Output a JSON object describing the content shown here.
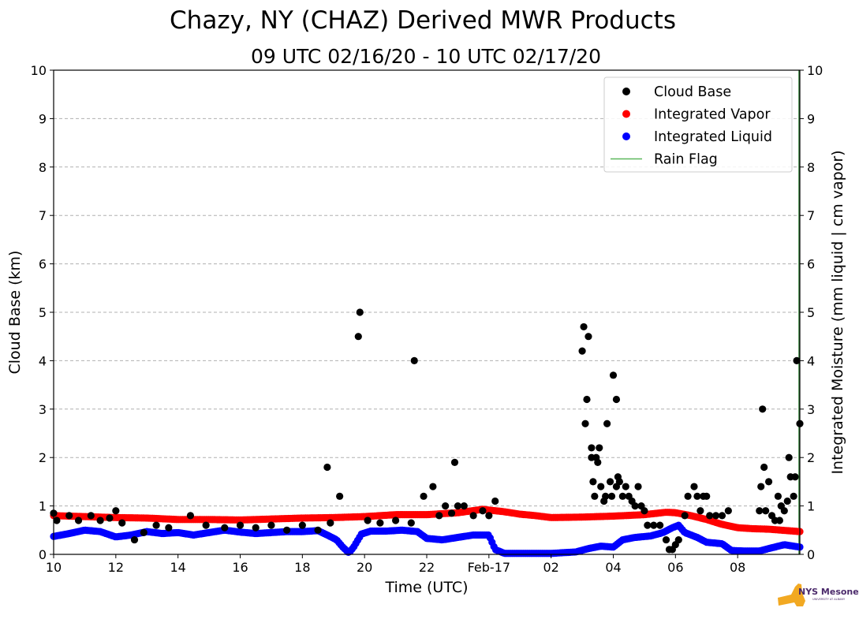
{
  "chart_data": {
    "type": "scatter",
    "title": "Chazy, NY (CHAZ) Derived MWR Products",
    "subtitle": "09 UTC 02/16/20 - 10 UTC 02/17/20",
    "xlabel": "Time (UTC)",
    "ylabel": "Cloud Base (km)",
    "ylabel_right": "Integrated Moisture (mm liquid | cm vapor)",
    "xlim_hours": [
      10,
      34
    ],
    "ylim": [
      0,
      10
    ],
    "grid": "horizontal-dashed",
    "legend_position": "top-right",
    "x_ticks": [
      {
        "h": 10,
        "label": "10"
      },
      {
        "h": 12,
        "label": "12"
      },
      {
        "h": 14,
        "label": "14"
      },
      {
        "h": 16,
        "label": "16"
      },
      {
        "h": 18,
        "label": "18"
      },
      {
        "h": 20,
        "label": "20"
      },
      {
        "h": 22,
        "label": "22"
      },
      {
        "h": 24,
        "label": "Feb-17"
      },
      {
        "h": 26,
        "label": "02"
      },
      {
        "h": 28,
        "label": "04"
      },
      {
        "h": 30,
        "label": "06"
      },
      {
        "h": 32,
        "label": "08"
      }
    ],
    "y_ticks": [
      "0",
      "1",
      "2",
      "3",
      "4",
      "5",
      "6",
      "7",
      "8",
      "9",
      "10"
    ],
    "legend": [
      {
        "label": "Cloud Base",
        "kind": "dot",
        "color": "#000000"
      },
      {
        "label": "Integrated Vapor",
        "kind": "dot",
        "color": "#ff0000"
      },
      {
        "label": "Integrated Liquid",
        "kind": "dot",
        "color": "#0000ff"
      },
      {
        "label": "Rain Flag",
        "kind": "line",
        "color": "#5cb85c"
      }
    ],
    "series": [
      {
        "name": "Integrated Vapor",
        "color": "#ff0000",
        "points": [
          [
            10,
            0.8
          ],
          [
            11,
            0.78
          ],
          [
            12,
            0.76
          ],
          [
            13,
            0.75
          ],
          [
            14,
            0.72
          ],
          [
            15,
            0.72
          ],
          [
            16,
            0.71
          ],
          [
            17,
            0.73
          ],
          [
            18,
            0.75
          ],
          [
            19,
            0.76
          ],
          [
            20,
            0.78
          ],
          [
            21,
            0.82
          ],
          [
            22,
            0.82
          ],
          [
            23,
            0.86
          ],
          [
            23.8,
            0.93
          ],
          [
            24.5,
            0.88
          ],
          [
            25,
            0.83
          ],
          [
            25.5,
            0.8
          ],
          [
            26,
            0.76
          ],
          [
            27,
            0.77
          ],
          [
            28,
            0.79
          ],
          [
            29,
            0.82
          ],
          [
            29.7,
            0.87
          ],
          [
            30,
            0.86
          ],
          [
            30.5,
            0.8
          ],
          [
            31,
            0.72
          ],
          [
            31.5,
            0.62
          ],
          [
            32,
            0.55
          ],
          [
            32.5,
            0.53
          ],
          [
            33,
            0.52
          ],
          [
            34,
            0.47
          ]
        ]
      },
      {
        "name": "Integrated Liquid",
        "color": "#0000ff",
        "points": [
          [
            10,
            0.37
          ],
          [
            10.5,
            0.43
          ],
          [
            11,
            0.5
          ],
          [
            11.5,
            0.47
          ],
          [
            12,
            0.36
          ],
          [
            12.5,
            0.4
          ],
          [
            13,
            0.47
          ],
          [
            13.5,
            0.43
          ],
          [
            14,
            0.45
          ],
          [
            14.5,
            0.4
          ],
          [
            15,
            0.45
          ],
          [
            15.5,
            0.5
          ],
          [
            16,
            0.46
          ],
          [
            16.5,
            0.43
          ],
          [
            17,
            0.45
          ],
          [
            17.5,
            0.47
          ],
          [
            18,
            0.47
          ],
          [
            18.5,
            0.49
          ],
          [
            18.8,
            0.4
          ],
          [
            19.1,
            0.3
          ],
          [
            19.3,
            0.15
          ],
          [
            19.5,
            0.03
          ],
          [
            19.65,
            0.15
          ],
          [
            19.9,
            0.42
          ],
          [
            20.2,
            0.48
          ],
          [
            20.7,
            0.48
          ],
          [
            21.2,
            0.5
          ],
          [
            21.7,
            0.47
          ],
          [
            22,
            0.33
          ],
          [
            22.5,
            0.3
          ],
          [
            23,
            0.35
          ],
          [
            23.5,
            0.4
          ],
          [
            24,
            0.4
          ],
          [
            24.2,
            0.1
          ],
          [
            24.5,
            0.02
          ],
          [
            25,
            0.02
          ],
          [
            26,
            0.02
          ],
          [
            26.8,
            0.05
          ],
          [
            27.2,
            0.12
          ],
          [
            27.6,
            0.17
          ],
          [
            28,
            0.15
          ],
          [
            28.3,
            0.3
          ],
          [
            28.7,
            0.35
          ],
          [
            29.2,
            0.38
          ],
          [
            29.6,
            0.45
          ],
          [
            29.9,
            0.55
          ],
          [
            30.1,
            0.6
          ],
          [
            30.3,
            0.45
          ],
          [
            30.7,
            0.35
          ],
          [
            31,
            0.25
          ],
          [
            31.5,
            0.22
          ],
          [
            31.8,
            0.08
          ],
          [
            32.2,
            0.07
          ],
          [
            32.7,
            0.07
          ],
          [
            33,
            0.12
          ],
          [
            33.5,
            0.2
          ],
          [
            34,
            0.15
          ]
        ]
      },
      {
        "name": "Cloud Base",
        "color": "#000000",
        "points": [
          [
            10,
            0.85
          ],
          [
            10.1,
            0.7
          ],
          [
            10.5,
            0.8
          ],
          [
            10.8,
            0.7
          ],
          [
            11.2,
            0.8
          ],
          [
            11.5,
            0.7
          ],
          [
            11.8,
            0.75
          ],
          [
            12,
            0.9
          ],
          [
            12.2,
            0.65
          ],
          [
            12.6,
            0.3
          ],
          [
            12.9,
            0.45
          ],
          [
            13.3,
            0.6
          ],
          [
            13.7,
            0.55
          ],
          [
            14.4,
            0.8
          ],
          [
            14.9,
            0.6
          ],
          [
            15.5,
            0.55
          ],
          [
            16,
            0.6
          ],
          [
            16.5,
            0.55
          ],
          [
            17,
            0.6
          ],
          [
            17.5,
            0.5
          ],
          [
            18,
            0.6
          ],
          [
            18.5,
            0.5
          ],
          [
            18.8,
            1.8
          ],
          [
            18.9,
            0.65
          ],
          [
            19.2,
            1.2
          ],
          [
            19.8,
            4.5
          ],
          [
            19.85,
            5.0
          ],
          [
            20.1,
            0.7
          ],
          [
            20.5,
            0.65
          ],
          [
            21,
            0.7
          ],
          [
            21.5,
            0.65
          ],
          [
            21.6,
            4.0
          ],
          [
            21.9,
            1.2
          ],
          [
            22.2,
            1.4
          ],
          [
            22.4,
            0.8
          ],
          [
            22.6,
            1.0
          ],
          [
            22.8,
            0.85
          ],
          [
            22.9,
            1.9
          ],
          [
            23,
            1.0
          ],
          [
            23.2,
            1.0
          ],
          [
            23.5,
            0.8
          ],
          [
            23.8,
            0.9
          ],
          [
            24,
            0.8
          ],
          [
            24.2,
            1.1
          ],
          [
            27,
            4.2
          ],
          [
            27.05,
            4.7
          ],
          [
            27.1,
            2.7
          ],
          [
            27.15,
            3.2
          ],
          [
            27.2,
            4.5
          ],
          [
            27.3,
            2.0
          ],
          [
            27.3,
            2.2
          ],
          [
            27.35,
            1.5
          ],
          [
            27.4,
            1.2
          ],
          [
            27.45,
            2.0
          ],
          [
            27.5,
            1.9
          ],
          [
            27.55,
            2.2
          ],
          [
            27.6,
            1.4
          ],
          [
            27.7,
            1.1
          ],
          [
            27.75,
            1.2
          ],
          [
            27.8,
            2.7
          ],
          [
            27.9,
            1.5
          ],
          [
            27.95,
            1.2
          ],
          [
            28,
            3.7
          ],
          [
            28.1,
            1.4
          ],
          [
            28.1,
            3.2
          ],
          [
            28.15,
            1.6
          ],
          [
            28.2,
            1.5
          ],
          [
            28.3,
            1.2
          ],
          [
            28.4,
            1.4
          ],
          [
            28.5,
            1.2
          ],
          [
            28.6,
            1.1
          ],
          [
            28.7,
            1.0
          ],
          [
            28.8,
            1.4
          ],
          [
            28.9,
            1.0
          ],
          [
            29,
            0.9
          ],
          [
            29.1,
            0.6
          ],
          [
            29.3,
            0.6
          ],
          [
            29.5,
            0.6
          ],
          [
            29.7,
            0.3
          ],
          [
            29.8,
            0.1
          ],
          [
            29.9,
            0.1
          ],
          [
            30,
            0.2
          ],
          [
            30.1,
            0.3
          ],
          [
            30.3,
            0.8
          ],
          [
            30.4,
            1.2
          ],
          [
            30.6,
            1.4
          ],
          [
            30.7,
            1.2
          ],
          [
            30.8,
            0.9
          ],
          [
            30.9,
            1.2
          ],
          [
            31,
            1.2
          ],
          [
            31.1,
            0.8
          ],
          [
            31.3,
            0.8
          ],
          [
            31.5,
            0.8
          ],
          [
            31.7,
            0.9
          ],
          [
            32.7,
            0.9
          ],
          [
            32.75,
            1.4
          ],
          [
            32.8,
            3.0
          ],
          [
            32.85,
            1.8
          ],
          [
            32.9,
            0.9
          ],
          [
            33,
            1.5
          ],
          [
            33.1,
            0.8
          ],
          [
            33.2,
            0.7
          ],
          [
            33.3,
            1.2
          ],
          [
            33.35,
            0.7
          ],
          [
            33.4,
            1.0
          ],
          [
            33.5,
            0.9
          ],
          [
            33.6,
            1.1
          ],
          [
            33.65,
            2.0
          ],
          [
            33.7,
            1.6
          ],
          [
            33.8,
            1.2
          ],
          [
            33.85,
            1.6
          ],
          [
            33.9,
            4.0
          ],
          [
            34,
            2.7
          ]
        ]
      }
    ]
  },
  "logo": {
    "text": "NYS Mesonet",
    "subtext": "UNIVERSITY AT ALBANY"
  }
}
